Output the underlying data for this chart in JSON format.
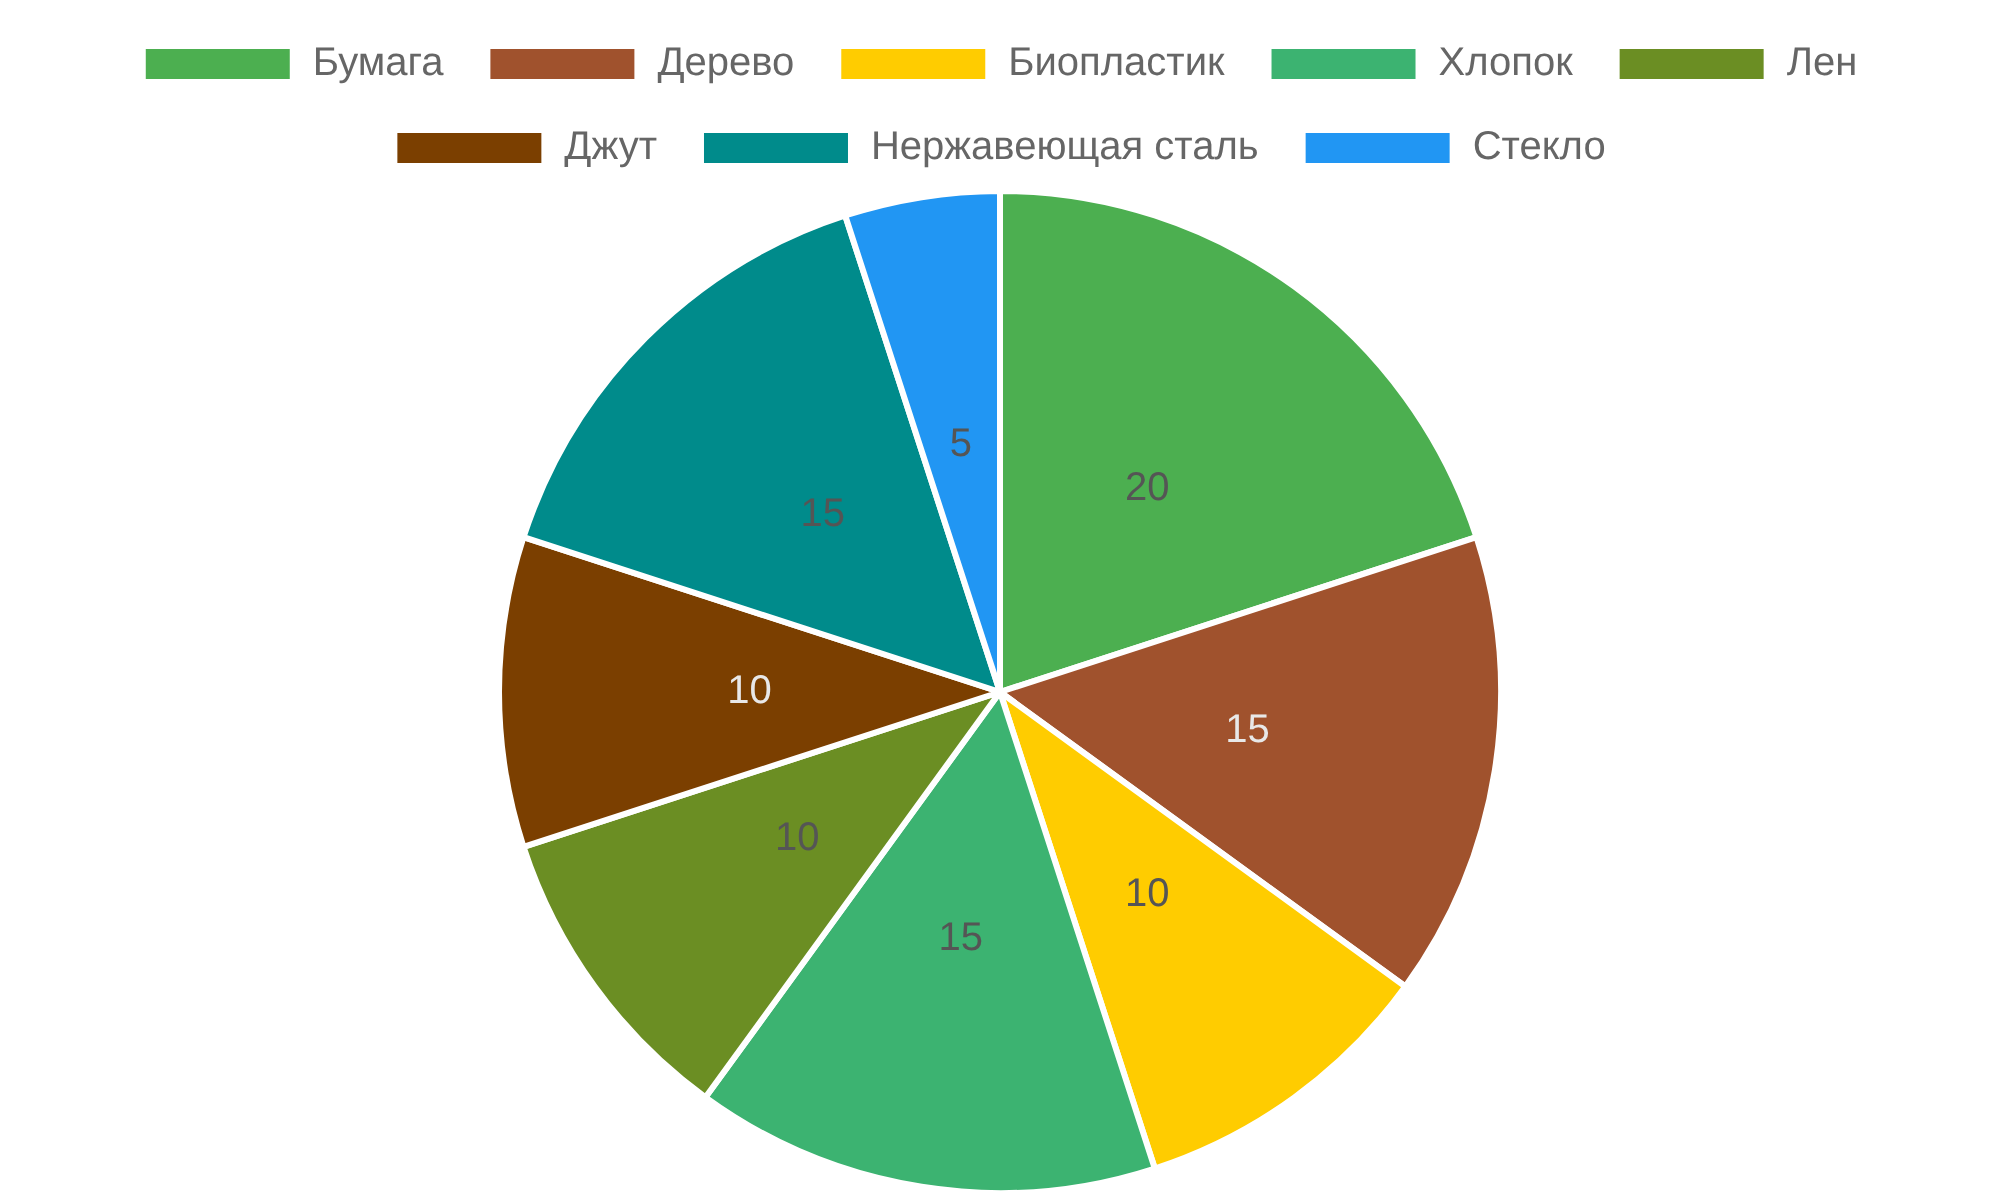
{
  "chart_data": {
    "type": "pie",
    "categories": [
      "Бумага",
      "Дерево",
      "Биопластик",
      "Хлопок",
      "Лен",
      "Джут",
      "Нержавеющая сталь",
      "Стекло"
    ],
    "values": [
      20,
      15,
      10,
      15,
      10,
      10,
      15,
      5
    ],
    "colors": [
      "#4caf50",
      "#a0522d",
      "#ffcc00",
      "#3cb371",
      "#6b8e23",
      "#7b3f00",
      "#008b8b",
      "#2196f3"
    ],
    "legend": "top",
    "data_labels": true
  }
}
